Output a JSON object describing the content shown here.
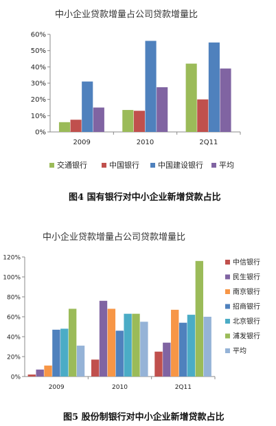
{
  "chart_data": [
    {
      "type": "bar",
      "title": "中小企业贷款增量占公司贷款增量比",
      "categories": [
        "2009",
        "2010",
        "2Q11"
      ],
      "ylim": [
        0,
        60
      ],
      "yticks": [
        "0%",
        "10%",
        "20%",
        "30%",
        "40%",
        "50%",
        "60%"
      ],
      "legend_position": "bottom",
      "series": [
        {
          "name": "交通银行",
          "color": "#9bbb59",
          "values": [
            6,
            13.5,
            42
          ]
        },
        {
          "name": "中国银行",
          "color": "#c0504d",
          "values": [
            7.5,
            13,
            20
          ]
        },
        {
          "name": "中国建设银行",
          "color": "#4f81bd",
          "values": [
            31,
            56,
            55
          ]
        },
        {
          "name": "平均",
          "color": "#8064a2",
          "values": [
            15,
            27.5,
            39
          ]
        }
      ],
      "caption": "图4 国有银行对中小企业新增贷款占比"
    },
    {
      "type": "bar",
      "title": "中小企业贷款增量占公司贷款增量比",
      "categories": [
        "2009",
        "2010",
        "2Q11"
      ],
      "ylim": [
        0,
        120
      ],
      "yticks": [
        "0%",
        "20%",
        "40%",
        "60%",
        "80%",
        "100%",
        "120%"
      ],
      "legend_position": "right",
      "series": [
        {
          "name": "中信银行",
          "color": "#c0504d",
          "values": [
            2,
            17,
            25
          ]
        },
        {
          "name": "民生银行",
          "color": "#8064a2",
          "values": [
            7,
            76,
            34
          ]
        },
        {
          "name": "南京银行",
          "color": "#f79646",
          "values": [
            11,
            68,
            67
          ]
        },
        {
          "name": "招商银行",
          "color": "#4f81bd",
          "values": [
            47,
            46,
            54
          ]
        },
        {
          "name": "北京银行",
          "color": "#4bacc6",
          "values": [
            48,
            63,
            62
          ]
        },
        {
          "name": "浦发银行",
          "color": "#9bbb59",
          "values": [
            68,
            63,
            116
          ]
        },
        {
          "name": "平均",
          "color": "#95b3d7",
          "values": [
            31,
            55,
            60
          ]
        }
      ],
      "caption": "图5 股份制银行对中小企业新增贷款占比"
    }
  ]
}
